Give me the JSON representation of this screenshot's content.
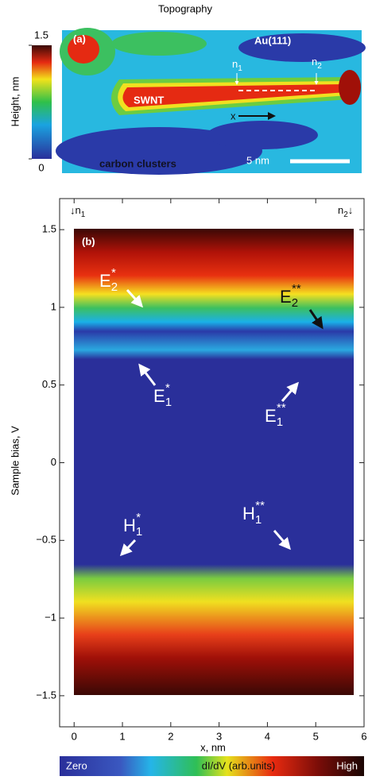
{
  "chart_data": [
    {
      "type": "image",
      "title": "Topography",
      "panel": "(a)",
      "colorbar": {
        "label": "Height, nm",
        "clim": [
          0,
          1.5
        ],
        "ticks": [
          0,
          1.5
        ]
      },
      "annotations": {
        "substrate": "Au(111)",
        "tube": "SWNT",
        "clusters": "carbon clusters",
        "scale": "5 nm",
        "axis": "x",
        "n1": {
          "text": "n",
          "sub": "1"
        },
        "n2": {
          "text": "n",
          "sub": "2"
        }
      }
    },
    {
      "type": "heatmap",
      "panel": "(b)",
      "xlabel": "x, nm",
      "ylabel": "Sample bias,  V",
      "xlim": [
        -0.3,
        6
      ],
      "xticks": [
        0,
        1,
        2,
        3,
        4,
        5,
        6
      ],
      "ylim": [
        -1.7,
        1.7
      ],
      "yticks": [
        {
          "value": -1.5,
          "label": "−1.5"
        },
        {
          "value": -1,
          "label": "−1"
        },
        {
          "value": -0.5,
          "label": "−0.5"
        },
        0,
        0.5,
        1,
        1.5
      ],
      "colorbar": {
        "low": "Zero",
        "label": "dI/dV (arb.units)",
        "high": "High"
      },
      "annotations": {
        "n1": {
          "text": "n",
          "sub": "1"
        },
        "n2": {
          "text": "n",
          "sub": "2"
        },
        "E2s": {
          "text": "E",
          "sub": "2",
          "sup": "*"
        },
        "E2ss": {
          "text": "E",
          "sub": "2",
          "sup": "**"
        },
        "E1s": {
          "text": "E",
          "sub": "1",
          "sup": "*"
        },
        "E1ss": {
          "text": "E",
          "sub": "1",
          "sup": "**"
        },
        "H1s": {
          "text": "H",
          "sub": "1",
          "sup": "*"
        },
        "H1ss": {
          "text": "H",
          "sub": "1",
          "sup": "**"
        }
      }
    }
  ]
}
